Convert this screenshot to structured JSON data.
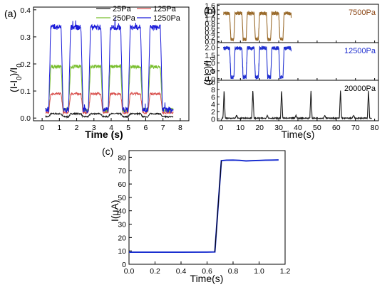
{
  "colors": {
    "p25": "#1a1a1a",
    "p125": "#d9524f",
    "p250": "#79bf2e",
    "p1250": "#1a1ad9",
    "p7500": "#9a6b2c",
    "p7500_text": "#8b4513",
    "p12500": "#1f2fd0",
    "p20000": "#1a1a1a",
    "panel_c": "#1a2fd0"
  },
  "chart_data": [
    {
      "type": "line",
      "panel_label": "(a)",
      "xlabel": "Time (s)",
      "ylabel": "(I-I0)/I0",
      "ylabel_parts": {
        "a": "(I-I",
        "sub1": "0",
        "b": ")/I",
        "sub2": "0"
      },
      "xlim": [
        -0.5,
        8.5
      ],
      "ylim": [
        -0.01,
        0.41
      ],
      "xticks": [
        0,
        1,
        2,
        3,
        4,
        5,
        6,
        7,
        8
      ],
      "xtick_labels": [
        "0",
        "1",
        "2",
        "3",
        "4",
        "5",
        "6",
        "7",
        "8"
      ],
      "yticks": [
        0.0,
        0.1,
        0.2,
        0.3,
        0.4
      ],
      "ytick_labels": [
        "0.0",
        "0.1",
        "0.2",
        "0.3",
        "0.4"
      ],
      "grid": false,
      "legend_position": "top-right",
      "pulse_centers": [
        0.8,
        1.95,
        3.1,
        4.25,
        5.4,
        6.55
      ],
      "series": [
        {
          "name": "25Pa",
          "baseline": 0.005,
          "peak": 0.016
        },
        {
          "name": "125Pa",
          "baseline": 0.02,
          "peak": 0.09
        },
        {
          "name": "250Pa",
          "baseline": 0.03,
          "peak": 0.19
        },
        {
          "name": "1250Pa",
          "baseline": 0.03,
          "peak": 0.335
        }
      ]
    },
    {
      "type": "line",
      "panel_label": "(b)",
      "xlabel": "Time(s)",
      "ylabel": "(I-I0)/I0",
      "ylabel_parts": {
        "a": "(I-I",
        "sub1": "0",
        "b": ")/I",
        "sub2": "0"
      },
      "xlim": [
        -2,
        82
      ],
      "xticks": [
        0,
        10,
        20,
        30,
        40,
        50,
        60,
        70,
        80
      ],
      "xtick_labels": [
        "0",
        "10",
        "20",
        "30",
        "40",
        "50",
        "60",
        "70",
        "80"
      ],
      "subplots": [
        {
          "label": "7500Pa",
          "ylim": [
            -0.05,
            1.65
          ],
          "yticks": [
            0.0,
            0.2,
            0.4,
            0.6,
            0.8,
            1.0,
            1.2,
            1.4,
            1.6
          ],
          "ytick_labels": [
            "0.0",
            "0.2",
            "0.4",
            "0.6",
            "0.8",
            "1.0",
            "1.2",
            "1.4",
            "1.6"
          ],
          "pulse_centers": [
            2.6,
            9.0,
            15.4,
            21.8,
            28.2,
            34.6
          ],
          "baseline": 0.1,
          "peak": 1.25
        },
        {
          "label": "12500Pa",
          "ylim": [
            -0.1,
            2.3
          ],
          "yticks": [
            0.0,
            0.5,
            1.0,
            1.5,
            2.0
          ],
          "ytick_labels": [
            "0.0",
            "0.5",
            "1.0",
            "1.5",
            "2.0"
          ],
          "pulse_centers": [
            2.6,
            9.0,
            15.4,
            21.8,
            28.2,
            34.6
          ],
          "baseline": 0.1,
          "peak": 1.95
        },
        {
          "label": "20000Pa",
          "ylim": [
            -0.5,
            10.5
          ],
          "yticks": [
            0,
            2,
            4,
            6,
            8,
            10
          ],
          "ytick_labels": [
            "0",
            "2",
            "4",
            "6",
            "8",
            "10"
          ],
          "spike_times": [
            1.5,
            16.5,
            31.5,
            46.8,
            62.2,
            76.8
          ],
          "spike_peak": 7.8,
          "small_bumps": [
            8,
            24,
            39,
            54,
            69
          ],
          "baseline": 0.2
        }
      ]
    },
    {
      "type": "line",
      "panel_label": "(c)",
      "xlabel": "Time(s)",
      "ylabel": "I(μA)",
      "xlim": [
        0,
        1.2
      ],
      "ylim": [
        0,
        85
      ],
      "xticks": [
        0,
        0.2,
        0.4,
        0.6,
        0.8,
        1.0,
        1.2
      ],
      "xtick_labels": [
        "0.0",
        "0.2",
        "0.4",
        "0.6",
        "0.8",
        "1.0",
        "1.2"
      ],
      "yticks": [
        0,
        10,
        20,
        30,
        40,
        50,
        60,
        70,
        80
      ],
      "ytick_labels": [
        "0",
        "10",
        "20",
        "30",
        "40",
        "50",
        "60",
        "70",
        "80"
      ],
      "series": [
        {
          "name": "",
          "x": [
            0.0,
            0.2,
            0.4,
            0.6,
            0.66,
            0.71,
            0.75,
            0.8,
            0.85,
            0.9,
            0.95,
            1.0,
            1.05,
            1.1,
            1.15
          ],
          "y": [
            9.0,
            9.0,
            9.0,
            9.1,
            9.2,
            77.5,
            77.8,
            77.9,
            77.7,
            77.3,
            77.5,
            77.6,
            77.8,
            77.9,
            78.0
          ]
        }
      ]
    }
  ]
}
